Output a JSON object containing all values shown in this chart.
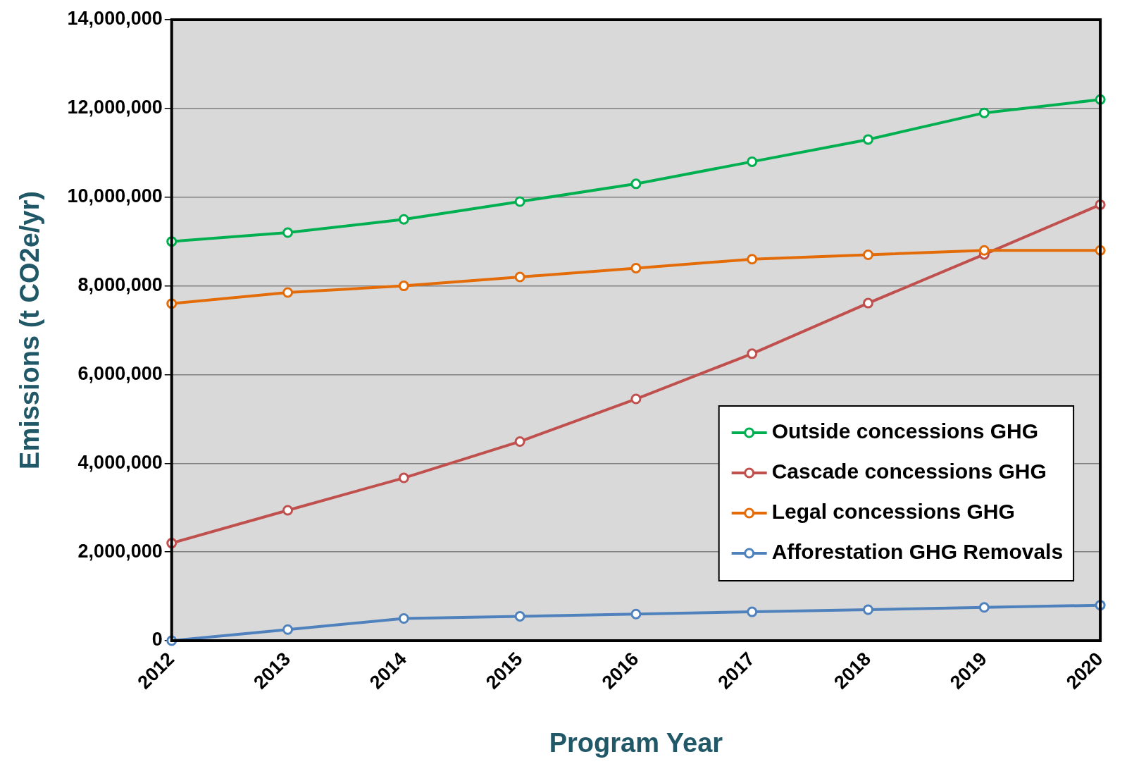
{
  "chart_data": {
    "type": "line",
    "xlabel": "Program Year",
    "ylabel": "Emissions (t CO2e/yr)",
    "categories": [
      "2012",
      "2013",
      "2014",
      "2015",
      "2016",
      "2017",
      "2018",
      "2019",
      "2020"
    ],
    "series": [
      {
        "name": "Outside concessions GHG",
        "color": "#00b050",
        "values": [
          9000000,
          9200000,
          9500000,
          9900000,
          10300000,
          10800000,
          11300000,
          11900000,
          12200000
        ]
      },
      {
        "name": "Cascade concessions GHG",
        "color": "#c0504d",
        "values": [
          2200000,
          2940000,
          3670000,
          4490000,
          5450000,
          6470000,
          7610000,
          8710000,
          9830000
        ]
      },
      {
        "name": "Legal concessions GHG",
        "color": "#e36c09",
        "values": [
          7600000,
          7850000,
          8000000,
          8200000,
          8400000,
          8600000,
          8700000,
          8800000,
          8800000
        ]
      },
      {
        "name": "Afforestation GHG Removals",
        "color": "#4f81bd",
        "values": [
          0,
          250000,
          500000,
          550000,
          600000,
          650000,
          700000,
          750000,
          800000
        ]
      }
    ],
    "ylim": [
      0,
      14000000
    ],
    "yticks": [
      0,
      {
        "value": 2000000,
        "label": "2,000,000"
      },
      {
        "value": 4000000,
        "label": "4,000,000"
      },
      {
        "value": 6000000,
        "label": "6,000,000"
      },
      {
        "value": 8000000,
        "label": "8,000,000"
      },
      {
        "value": 10000000,
        "label": "10,000,000"
      },
      {
        "value": 12000000,
        "label": "12,000,000"
      },
      {
        "value": 14000000,
        "label": "14,000,000"
      }
    ],
    "grid": "y",
    "legend": "bottom right",
    "marker": "circle",
    "line_style": "solid"
  }
}
